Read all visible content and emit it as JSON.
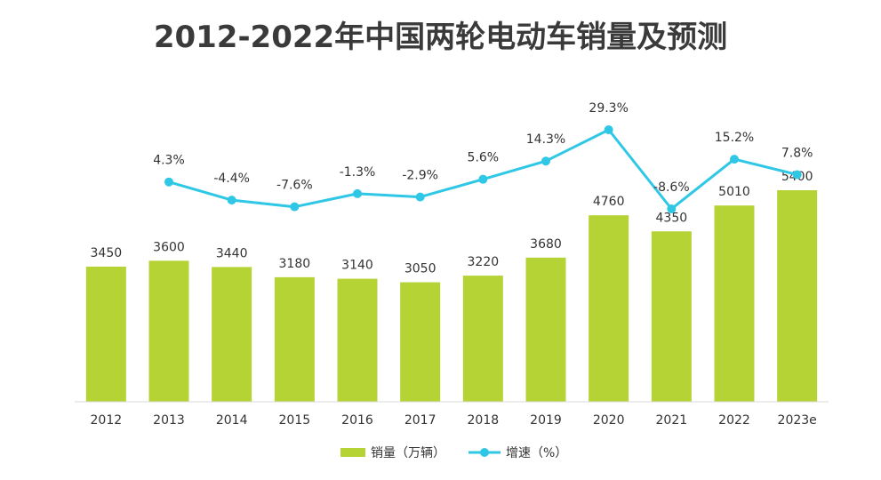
{
  "chart_data": {
    "type": "bar",
    "title": "2012-2022年中国两轮电动车销量及预测",
    "categories": [
      "2012",
      "2013",
      "2014",
      "2015",
      "2016",
      "2017",
      "2018",
      "2019",
      "2020",
      "2021",
      "2022",
      "2023e"
    ],
    "series": [
      {
        "name": "销量（万辆）",
        "type": "bar",
        "values": [
          3450,
          3600,
          3440,
          3180,
          3140,
          3050,
          3220,
          3680,
          4760,
          4350,
          5010,
          5400
        ],
        "labels": [
          "3450",
          "3600",
          "3440",
          "3180",
          "3140",
          "3050",
          "3220",
          "3680",
          "4760",
          "4350",
          "5010",
          "5400"
        ],
        "color": "#b5d334"
      },
      {
        "name": "增速（%）",
        "type": "line",
        "values": [
          null,
          4.3,
          -4.4,
          -7.6,
          -1.3,
          -2.9,
          5.6,
          14.3,
          29.3,
          -8.6,
          15.2,
          7.8
        ],
        "labels": [
          "",
          "4.3%",
          "-4.4%",
          "-7.6%",
          "-1.3%",
          "-2.9%",
          "5.6%",
          "14.3%",
          "29.3%",
          "-8.6%",
          "15.2%",
          "7.8%"
        ],
        "color": "#2ec7e6"
      }
    ],
    "xlabel": "",
    "ylabel": "",
    "ylim": [
      0,
      5400
    ],
    "ylim_line": [
      -8.6,
      29.3
    ],
    "grid": false,
    "legend": "bottom-center"
  }
}
